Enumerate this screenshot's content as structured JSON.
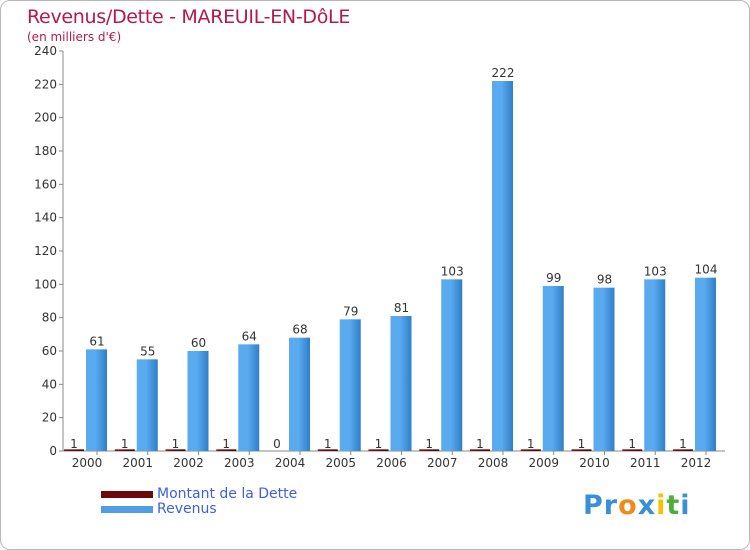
{
  "chart_data": {
    "type": "bar",
    "title": "Revenus/Dette - MAREUIL-EN-DôLE",
    "subtitle": "(en milliers d'€)",
    "categories": [
      "2000",
      "2001",
      "2002",
      "2003",
      "2004",
      "2005",
      "2006",
      "2007",
      "2008",
      "2009",
      "2010",
      "2011",
      "2012"
    ],
    "series": [
      {
        "name": "Montant de la Dette",
        "color": "#6b0a0a",
        "values": [
          1,
          1,
          1,
          1,
          0,
          1,
          1,
          1,
          1,
          1,
          1,
          1,
          1
        ]
      },
      {
        "name": "Revenus",
        "color": "#4f9ee4",
        "values": [
          61,
          55,
          60,
          64,
          68,
          79,
          81,
          103,
          222,
          99,
          98,
          103,
          104
        ]
      }
    ],
    "ylim": [
      0,
      240
    ],
    "yticks": [
      0,
      20,
      40,
      60,
      80,
      100,
      120,
      140,
      160,
      180,
      200,
      220,
      240
    ],
    "grid": false,
    "legend_position": "bottom-left"
  },
  "logo": {
    "text": "Proxiti",
    "letters": [
      "P",
      "r",
      "o",
      "x",
      "i",
      "t",
      "i"
    ],
    "colors": [
      "#3a8fd8",
      "#3a8fd8",
      "#f08a1c",
      "#3a8fd8",
      "#f5c400",
      "#4caf3a",
      "#3a8fd8"
    ]
  }
}
